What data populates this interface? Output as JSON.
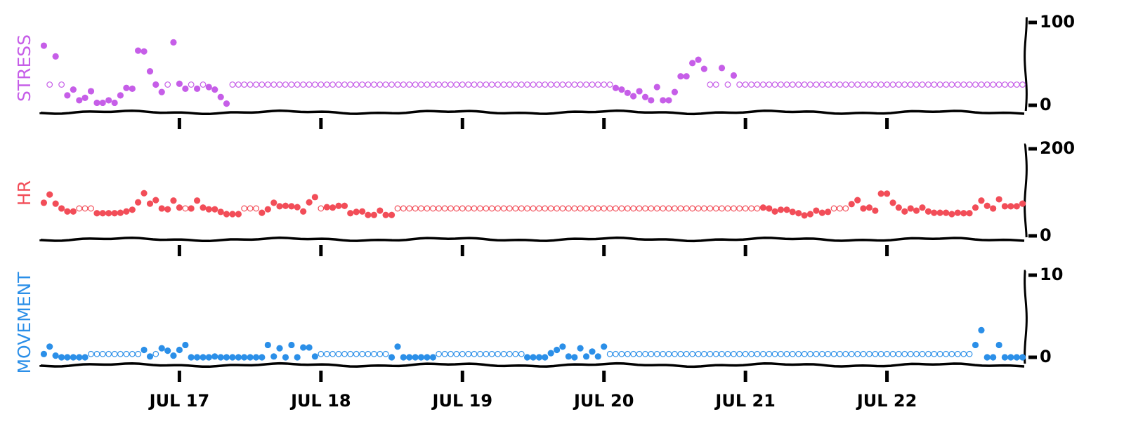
{
  "chart_data": {
    "type": "scatter",
    "xlim": [
      16.02,
      22.98
    ],
    "xticks": [
      {
        "value": 17,
        "label": "JUL 17"
      },
      {
        "value": 18,
        "label": "JUL 18"
      },
      {
        "value": 19,
        "label": "JUL 19"
      },
      {
        "value": 20,
        "label": "JUL 20"
      },
      {
        "value": 21,
        "label": "JUL 21"
      },
      {
        "value": 22,
        "label": "JUL 22"
      }
    ],
    "x": [
      16.042,
      16.083,
      16.125,
      16.167,
      16.208,
      16.25,
      16.292,
      16.333,
      16.375,
      16.417,
      16.458,
      16.5,
      16.542,
      16.583,
      16.625,
      16.667,
      16.708,
      16.75,
      16.792,
      16.833,
      16.875,
      16.917,
      16.958,
      17,
      17.042,
      17.083,
      17.125,
      17.167,
      17.208,
      17.25,
      17.292,
      17.333,
      17.375,
      17.417,
      17.458,
      17.5,
      17.542,
      17.583,
      17.625,
      17.667,
      17.708,
      17.75,
      17.792,
      17.833,
      17.875,
      17.917,
      17.958,
      18,
      18.042,
      18.083,
      18.125,
      18.167,
      18.208,
      18.25,
      18.292,
      18.333,
      18.375,
      18.417,
      18.458,
      18.5,
      18.542,
      18.583,
      18.625,
      18.667,
      18.708,
      18.75,
      18.792,
      18.833,
      18.875,
      18.917,
      18.958,
      19,
      19.042,
      19.083,
      19.125,
      19.167,
      19.208,
      19.25,
      19.292,
      19.333,
      19.375,
      19.417,
      19.458,
      19.5,
      19.542,
      19.583,
      19.625,
      19.667,
      19.708,
      19.75,
      19.792,
      19.833,
      19.875,
      19.917,
      19.958,
      20,
      20.042,
      20.083,
      20.125,
      20.167,
      20.208,
      20.25,
      20.292,
      20.333,
      20.375,
      20.417,
      20.458,
      20.5,
      20.542,
      20.583,
      20.625,
      20.667,
      20.708,
      20.75,
      20.792,
      20.833,
      20.875,
      20.917,
      20.958,
      21,
      21.042,
      21.083,
      21.125,
      21.167,
      21.208,
      21.25,
      21.292,
      21.333,
      21.375,
      21.417,
      21.458,
      21.5,
      21.542,
      21.583,
      21.625,
      21.667,
      21.708,
      21.75,
      21.792,
      21.833,
      21.875,
      21.917,
      21.958,
      22,
      22.042,
      22.083,
      22.125,
      22.167,
      22.208,
      22.25,
      22.292,
      22.333,
      22.375,
      22.417,
      22.458,
      22.5,
      22.542,
      22.583,
      22.625,
      22.667,
      22.708,
      22.75,
      22.792,
      22.833,
      22.875,
      22.917,
      22.958
    ],
    "series": [
      {
        "name": "STRESS",
        "color": "#c65ee8",
        "ylim": [
          0,
          100
        ],
        "yticks": [
          0,
          100
        ],
        "fill_value": 25,
        "values": [
          72,
          null,
          59,
          null,
          12,
          19,
          6,
          9,
          17,
          3,
          3,
          6,
          3,
          12,
          21,
          20,
          66,
          65,
          41,
          25,
          16,
          null,
          76,
          26,
          20,
          null,
          20,
          null,
          22,
          19,
          10,
          2,
          null,
          null,
          null,
          null,
          null,
          null,
          null,
          null,
          null,
          null,
          null,
          null,
          null,
          null,
          null,
          null,
          null,
          null,
          null,
          null,
          null,
          null,
          null,
          null,
          null,
          null,
          null,
          null,
          null,
          null,
          null,
          null,
          null,
          null,
          null,
          null,
          null,
          null,
          null,
          null,
          null,
          null,
          null,
          null,
          null,
          null,
          null,
          null,
          null,
          null,
          null,
          null,
          null,
          null,
          null,
          null,
          null,
          null,
          null,
          null,
          null,
          null,
          null,
          null,
          null,
          21,
          19,
          15,
          11,
          17,
          10,
          6,
          22,
          6,
          6,
          16,
          35,
          35,
          51,
          55,
          44,
          null,
          null,
          45,
          null,
          36,
          null,
          null,
          null,
          null,
          null,
          null,
          null,
          null,
          null,
          null,
          null,
          null,
          null,
          null,
          null,
          null,
          null,
          null,
          null,
          null,
          null,
          null,
          null,
          null,
          null,
          null,
          null,
          null,
          null,
          null,
          null,
          null,
          null,
          null,
          null,
          null,
          null,
          null,
          null,
          null,
          null,
          null,
          null,
          null,
          null,
          null,
          null,
          null,
          null
        ]
      },
      {
        "name": "HR",
        "color": "#f24d58",
        "ylim": [
          0,
          200
        ],
        "yticks": [
          0,
          200
        ],
        "fill_value": 63,
        "values": [
          76,
          95,
          74,
          63,
          56,
          56,
          null,
          null,
          null,
          52,
          52,
          52,
          52,
          53,
          56,
          60,
          77,
          98,
          74,
          82,
          63,
          61,
          81,
          65,
          null,
          63,
          81,
          65,
          61,
          61,
          55,
          50,
          50,
          50,
          null,
          null,
          null,
          53,
          61,
          76,
          68,
          69,
          68,
          66,
          56,
          77,
          89,
          null,
          66,
          65,
          69,
          69,
          52,
          55,
          56,
          48,
          48,
          58,
          48,
          48,
          null,
          null,
          null,
          null,
          null,
          null,
          null,
          null,
          null,
          null,
          null,
          null,
          null,
          null,
          null,
          null,
          null,
          null,
          null,
          null,
          null,
          null,
          null,
          null,
          null,
          null,
          null,
          null,
          null,
          null,
          null,
          null,
          null,
          null,
          null,
          null,
          null,
          null,
          null,
          null,
          null,
          null,
          null,
          null,
          null,
          null,
          null,
          null,
          null,
          null,
          null,
          null,
          null,
          null,
          null,
          null,
          null,
          null,
          null,
          null,
          null,
          null,
          65,
          63,
          56,
          60,
          60,
          55,
          52,
          47,
          50,
          58,
          53,
          55,
          null,
          null,
          null,
          73,
          82,
          63,
          65,
          58,
          97,
          97,
          76,
          65,
          56,
          63,
          58,
          65,
          56,
          53,
          53,
          53,
          50,
          53,
          52,
          52,
          65,
          81,
          69,
          63,
          84,
          68,
          68,
          68,
          74
        ]
      },
      {
        "name": "MOVEMENT",
        "color": "#2b8fe8",
        "ylim": [
          0,
          10
        ],
        "yticks": [
          0,
          10
        ],
        "fill_value": 0.4,
        "values": [
          0.4,
          1.3,
          0.2,
          0,
          0,
          0,
          0,
          0,
          null,
          null,
          null,
          null,
          null,
          null,
          null,
          null,
          null,
          0.9,
          0.1,
          null,
          1.1,
          0.8,
          0.2,
          0.9,
          1.5,
          0,
          0,
          0,
          0,
          0.1,
          0,
          0,
          0,
          0,
          0,
          0,
          0,
          0,
          1.5,
          0.1,
          1.1,
          0,
          1.5,
          0,
          1.2,
          1.2,
          0.1,
          null,
          null,
          null,
          null,
          null,
          null,
          null,
          null,
          null,
          null,
          null,
          null,
          0,
          1.3,
          0,
          0,
          0,
          0,
          0,
          0,
          null,
          null,
          null,
          null,
          null,
          null,
          null,
          null,
          null,
          null,
          null,
          null,
          null,
          null,
          null,
          0,
          0,
          0,
          0,
          0.5,
          0.9,
          1.3,
          0.1,
          0,
          1.1,
          0.1,
          0.7,
          0.1,
          1.3,
          null,
          null,
          null,
          null,
          null,
          null,
          null,
          null,
          null,
          null,
          null,
          null,
          null,
          null,
          null,
          null,
          null,
          null,
          null,
          null,
          null,
          null,
          null,
          null,
          null,
          null,
          null,
          null,
          null,
          null,
          null,
          null,
          null,
          null,
          null,
          null,
          null,
          null,
          null,
          null,
          null,
          null,
          null,
          null,
          null,
          null,
          null,
          null,
          null,
          null,
          null,
          null,
          null,
          null,
          null,
          null,
          null,
          null,
          null,
          null,
          null,
          null,
          1.5,
          3.3,
          0,
          0,
          1.5,
          0,
          0,
          0,
          0
        ]
      }
    ]
  }
}
